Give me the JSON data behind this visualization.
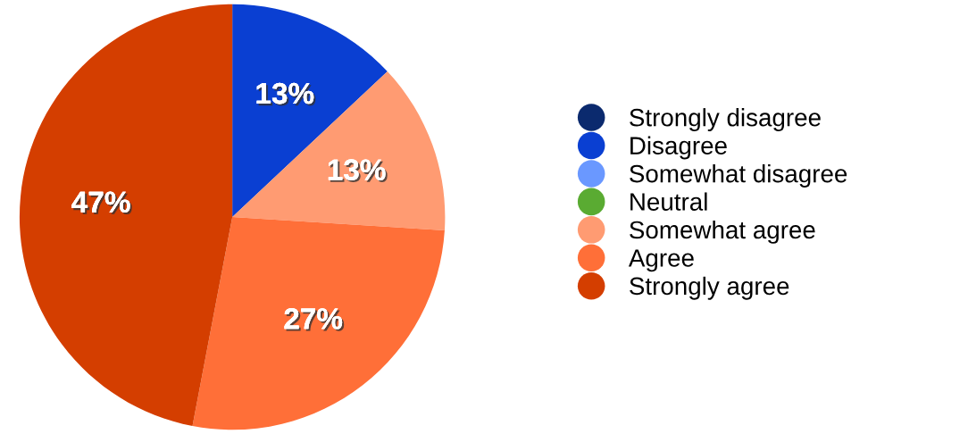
{
  "chart_data": {
    "type": "pie",
    "categories": [
      "Strongly disagree",
      "Disagree",
      "Somewhat disagree",
      "Neutral",
      "Somewhat agree",
      "Agree",
      "Strongly agree"
    ],
    "values": [
      0,
      13,
      0,
      0,
      13,
      27,
      47
    ],
    "colors": [
      "#0b2a6e",
      "#0a3fd2",
      "#6a98ff",
      "#5aab32",
      "#ff9b72",
      "#ff6f38",
      "#d43e00"
    ],
    "value_labels": [
      null,
      "13%",
      null,
      null,
      "13%",
      "27%",
      "47%"
    ],
    "legend": "right"
  }
}
